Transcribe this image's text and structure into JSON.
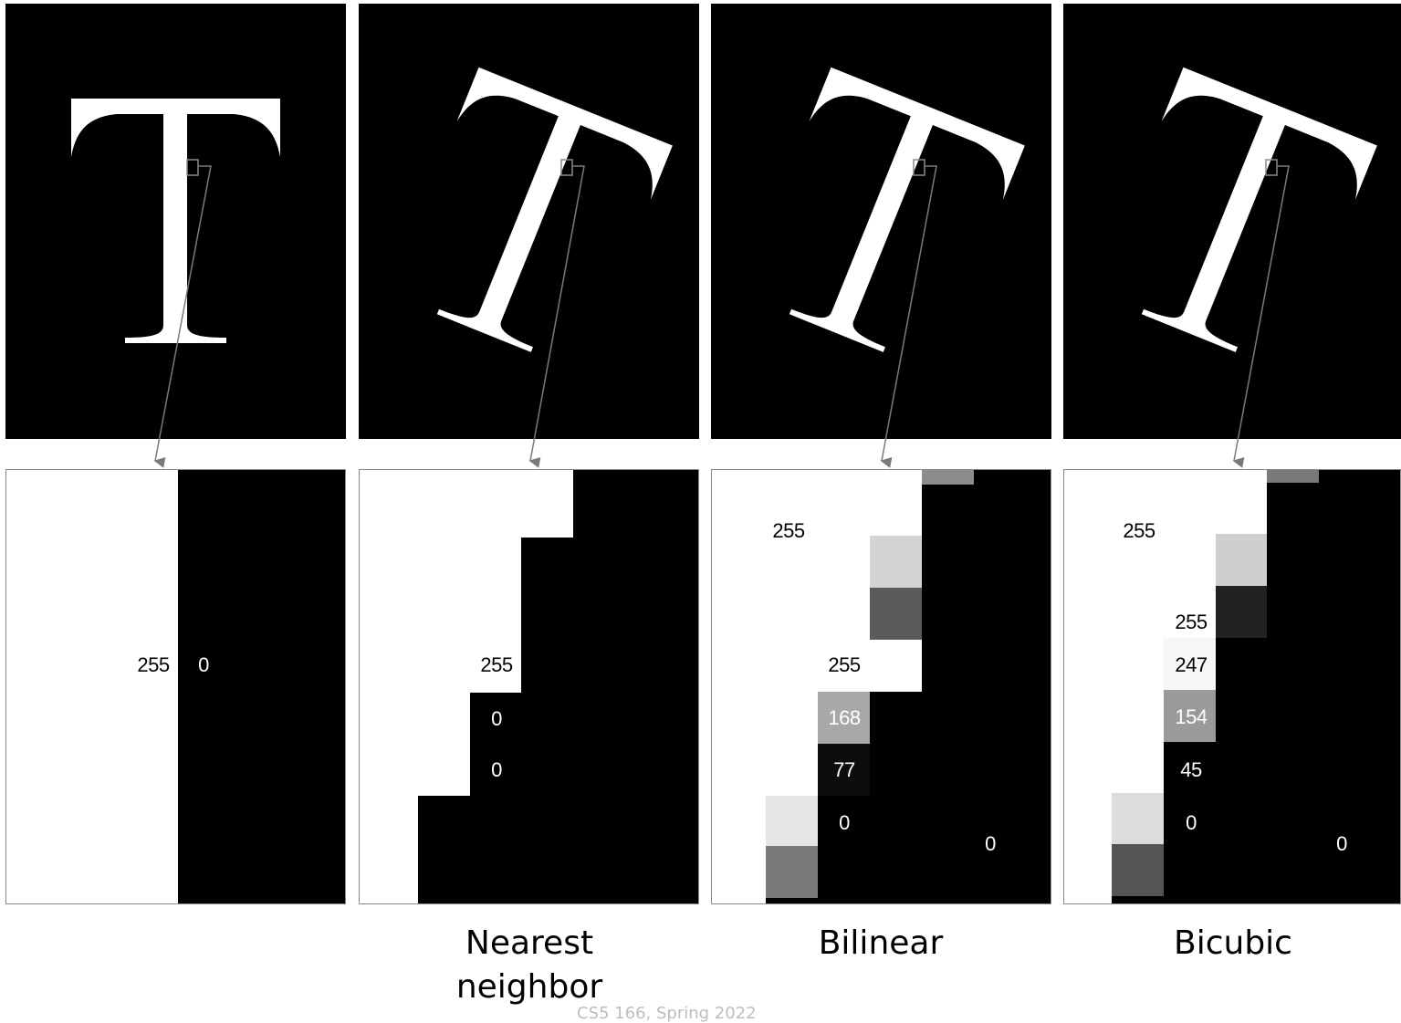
{
  "panels": [
    {
      "method": "",
      "rotation_deg": 0,
      "pixel_values": [
        "255",
        "0"
      ]
    },
    {
      "method": "Nearest neighbor",
      "method_lines": [
        "Nearest",
        "neighbor"
      ],
      "rotation_deg": 22,
      "pixel_values": [
        "255",
        "0",
        "0"
      ]
    },
    {
      "method": "Bilinear",
      "method_lines": [
        "Bilinear"
      ],
      "rotation_deg": 22,
      "pixel_values": [
        "255",
        "255",
        "168",
        "77",
        "0",
        "0"
      ]
    },
    {
      "method": "Bicubic",
      "method_lines": [
        "Bicubic"
      ],
      "rotation_deg": 22,
      "pixel_values": [
        "255",
        "255",
        "247",
        "154",
        "45",
        "0",
        "0"
      ]
    }
  ],
  "footer": "CS5 166, Spring 2022",
  "colors": {
    "background": "#000000",
    "foreground": "#ffffff",
    "frame": "#8a8a8a"
  }
}
